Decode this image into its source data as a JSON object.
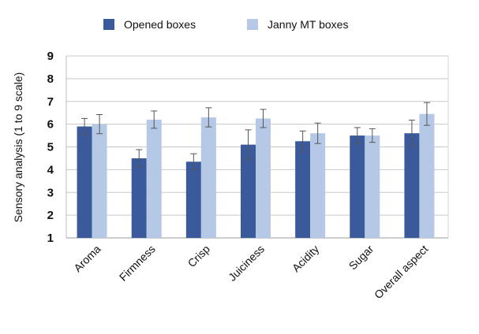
{
  "chart_data": {
    "type": "bar",
    "title": "",
    "xlabel": "",
    "ylabel": "Sensory analysis (1 to 9 scale)",
    "ylim": [
      1,
      9
    ],
    "yticks": [
      1,
      2,
      3,
      4,
      5,
      6,
      7,
      8,
      9
    ],
    "grid": true,
    "legend_position": "top",
    "categories": [
      "Aroma",
      "Firmness",
      "Crisp",
      "Juiciness",
      "Acidity",
      "Sugar",
      "Overall aspect"
    ],
    "series": [
      {
        "name": "Opened boxes",
        "color": "#3a5a9b",
        "values": [
          5.9,
          4.5,
          4.35,
          5.1,
          5.25,
          5.5,
          5.6
        ],
        "errors": [
          0.35,
          0.38,
          0.35,
          0.65,
          0.45,
          0.35,
          0.58
        ]
      },
      {
        "name": "Janny MT boxes",
        "color": "#b5c9e6",
        "values": [
          6.0,
          6.2,
          6.3,
          6.25,
          5.6,
          5.5,
          6.45
        ],
        "errors": [
          0.42,
          0.38,
          0.42,
          0.4,
          0.45,
          0.3,
          0.5
        ]
      }
    ]
  }
}
